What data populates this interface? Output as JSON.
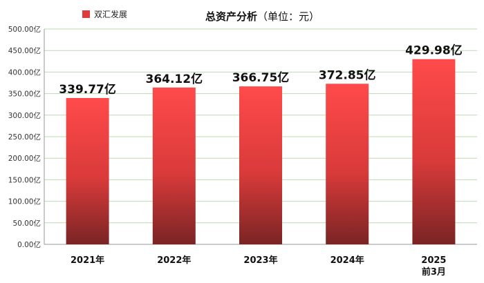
{
  "chart_data": {
    "type": "bar",
    "title": "总资产分析（单位：元）",
    "title_main": "总资产分析",
    "title_unit": "（单位：元）",
    "categories": [
      "2021年",
      "2022年",
      "2023年",
      "2024年",
      "2025\n前3月"
    ],
    "category_lines": [
      [
        "2021年"
      ],
      [
        "2022年"
      ],
      [
        "2023年"
      ],
      [
        "2024年"
      ],
      [
        "2025",
        "前3月"
      ]
    ],
    "series": [
      {
        "name": "双汇发展",
        "values": [
          339.77,
          364.12,
          366.75,
          372.85,
          429.98
        ],
        "data_labels": [
          "339.77亿",
          "364.12亿",
          "366.75亿",
          "372.85亿",
          "429.98亿"
        ]
      }
    ],
    "yticks": [
      0,
      50,
      100,
      150,
      200,
      250,
      300,
      350,
      400,
      450,
      500
    ],
    "ytick_labels": [
      "0.00亿",
      "50.00亿",
      "100.00亿",
      "150.00亿",
      "200.00亿",
      "250.00亿",
      "300.00亿",
      "350.00亿",
      "400.00亿",
      "450.00亿",
      "500.00亿"
    ],
    "ylim": [
      0,
      500
    ],
    "grid": true,
    "legend_position": "top-left",
    "colors": {
      "bar_top": "#ff4a4a",
      "bar_mid": "#d93a3a",
      "bar_bottom": "#7a2424",
      "grid": "#b9dcae",
      "legend_swatch": "#e03a3a"
    }
  }
}
